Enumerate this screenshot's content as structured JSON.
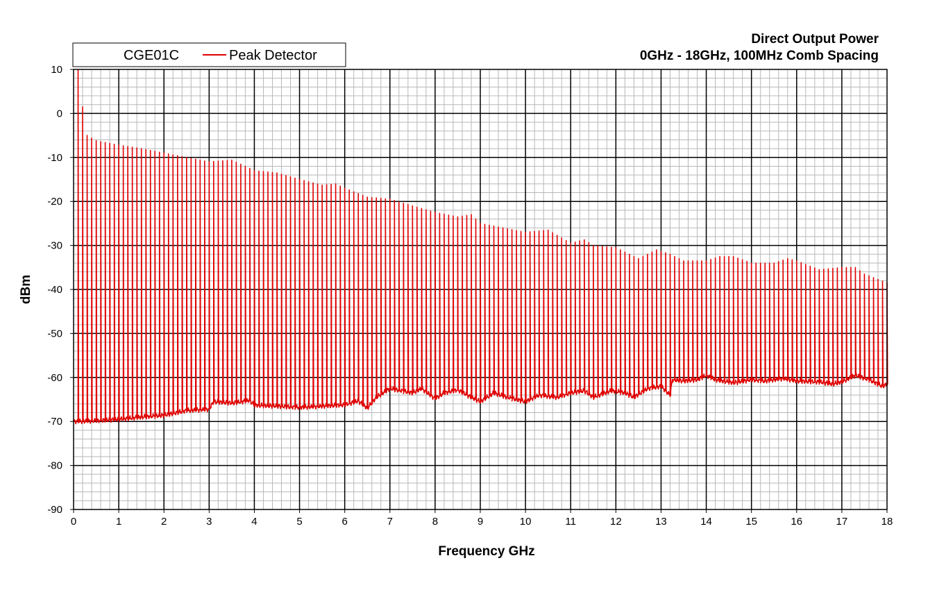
{
  "chart_data": {
    "type": "line",
    "title": [
      "Direct Output Power",
      "0GHz - 18GHz, 100MHz Comb Spacing"
    ],
    "xlabel": "Frequency  GHz",
    "ylabel": "dBm",
    "xlim": [
      0,
      18
    ],
    "ylim": [
      -90,
      10
    ],
    "x_major_step": 1,
    "x_minor_step": 0.2,
    "y_major_step": 10,
    "y_minor_step": 2,
    "grid": true,
    "x_tick_labels": [
      "0",
      "1",
      "2",
      "3",
      "4",
      "5",
      "6",
      "7",
      "8",
      "9",
      "10",
      "11",
      "12",
      "13",
      "14",
      "15",
      "16",
      "17",
      "18"
    ],
    "y_tick_labels": [
      "10",
      "0",
      "-10",
      "-20",
      "-30",
      "-40",
      "-50",
      "-60",
      "-70",
      "-80",
      "-90"
    ],
    "legend": {
      "placement": "top-left",
      "device": "CGE01C",
      "entry": "Peak Detector"
    },
    "series": [
      {
        "name": "Peak Detector",
        "color": "#e00000",
        "comb_spacing_ghz": 0.1,
        "peak_envelope": [
          [
            0.1,
            10
          ],
          [
            0.2,
            1.5
          ],
          [
            0.3,
            -5
          ],
          [
            0.5,
            -6.2
          ],
          [
            0.8,
            -6.8
          ],
          [
            1.0,
            -7.2
          ],
          [
            1.5,
            -8
          ],
          [
            2.0,
            -9
          ],
          [
            2.5,
            -10
          ],
          [
            3.0,
            -11
          ],
          [
            3.5,
            -10.6
          ],
          [
            3.8,
            -12
          ],
          [
            4.0,
            -13
          ],
          [
            4.5,
            -13.5
          ],
          [
            5.0,
            -15
          ],
          [
            5.5,
            -16.3
          ],
          [
            5.8,
            -16
          ],
          [
            6.0,
            -17
          ],
          [
            6.5,
            -19
          ],
          [
            7.0,
            -19.5
          ],
          [
            7.5,
            -21
          ],
          [
            8.0,
            -22.5
          ],
          [
            8.5,
            -23.5
          ],
          [
            8.8,
            -23
          ],
          [
            9.0,
            -25
          ],
          [
            9.5,
            -26
          ],
          [
            10.0,
            -27
          ],
          [
            10.5,
            -26.5
          ],
          [
            11.0,
            -29.5
          ],
          [
            11.3,
            -28.7
          ],
          [
            11.5,
            -30
          ],
          [
            12.0,
            -30.5
          ],
          [
            12.5,
            -33
          ],
          [
            12.9,
            -31
          ],
          [
            13.2,
            -32
          ],
          [
            13.5,
            -33.5
          ],
          [
            14.0,
            -33.5
          ],
          [
            14.3,
            -32.5
          ],
          [
            14.6,
            -32.5
          ],
          [
            15.0,
            -34
          ],
          [
            15.5,
            -34
          ],
          [
            15.8,
            -33
          ],
          [
            16.0,
            -33.5
          ],
          [
            16.5,
            -35.5
          ],
          [
            17.0,
            -35
          ],
          [
            17.3,
            -35
          ],
          [
            17.5,
            -36.5
          ],
          [
            18.0,
            -38.5
          ]
        ],
        "floor_envelope": [
          [
            0,
            -70
          ],
          [
            0.5,
            -69.8
          ],
          [
            1.0,
            -69.5
          ],
          [
            1.5,
            -69
          ],
          [
            2.0,
            -68.6
          ],
          [
            2.5,
            -67.5
          ],
          [
            3.0,
            -67.2
          ],
          [
            3.1,
            -65.5
          ],
          [
            3.5,
            -65.8
          ],
          [
            3.9,
            -65.2
          ],
          [
            4.0,
            -66.3
          ],
          [
            4.5,
            -66.5
          ],
          [
            5.0,
            -66.8
          ],
          [
            5.5,
            -66.5
          ],
          [
            6.0,
            -66.2
          ],
          [
            6.3,
            -65.3
          ],
          [
            6.5,
            -67
          ],
          [
            6.7,
            -64.5
          ],
          [
            7.0,
            -62.5
          ],
          [
            7.5,
            -63.5
          ],
          [
            7.7,
            -62.5
          ],
          [
            8.0,
            -64.8
          ],
          [
            8.2,
            -63.5
          ],
          [
            8.5,
            -62.8
          ],
          [
            8.8,
            -64.5
          ],
          [
            9.0,
            -65.5
          ],
          [
            9.3,
            -63.5
          ],
          [
            9.6,
            -64.5
          ],
          [
            10.0,
            -65.5
          ],
          [
            10.3,
            -64
          ],
          [
            10.7,
            -64.5
          ],
          [
            11.0,
            -63.5
          ],
          [
            11.3,
            -63
          ],
          [
            11.5,
            -64.5
          ],
          [
            11.9,
            -63
          ],
          [
            12.2,
            -63.5
          ],
          [
            12.4,
            -64.5
          ],
          [
            12.7,
            -62.5
          ],
          [
            13.0,
            -62
          ],
          [
            13.2,
            -64
          ],
          [
            13.25,
            -60.5
          ],
          [
            13.5,
            -60.8
          ],
          [
            13.8,
            -60.5
          ],
          [
            14.0,
            -59.5
          ],
          [
            14.2,
            -60.5
          ],
          [
            14.6,
            -61.2
          ],
          [
            15.0,
            -60.5
          ],
          [
            15.3,
            -60.8
          ],
          [
            15.7,
            -60.2
          ],
          [
            16.0,
            -60.8
          ],
          [
            16.5,
            -61
          ],
          [
            16.8,
            -61.5
          ],
          [
            17.0,
            -61
          ],
          [
            17.3,
            -59.5
          ],
          [
            17.6,
            -60.5
          ],
          [
            17.9,
            -62
          ],
          [
            18.0,
            -61.5
          ]
        ]
      }
    ]
  }
}
